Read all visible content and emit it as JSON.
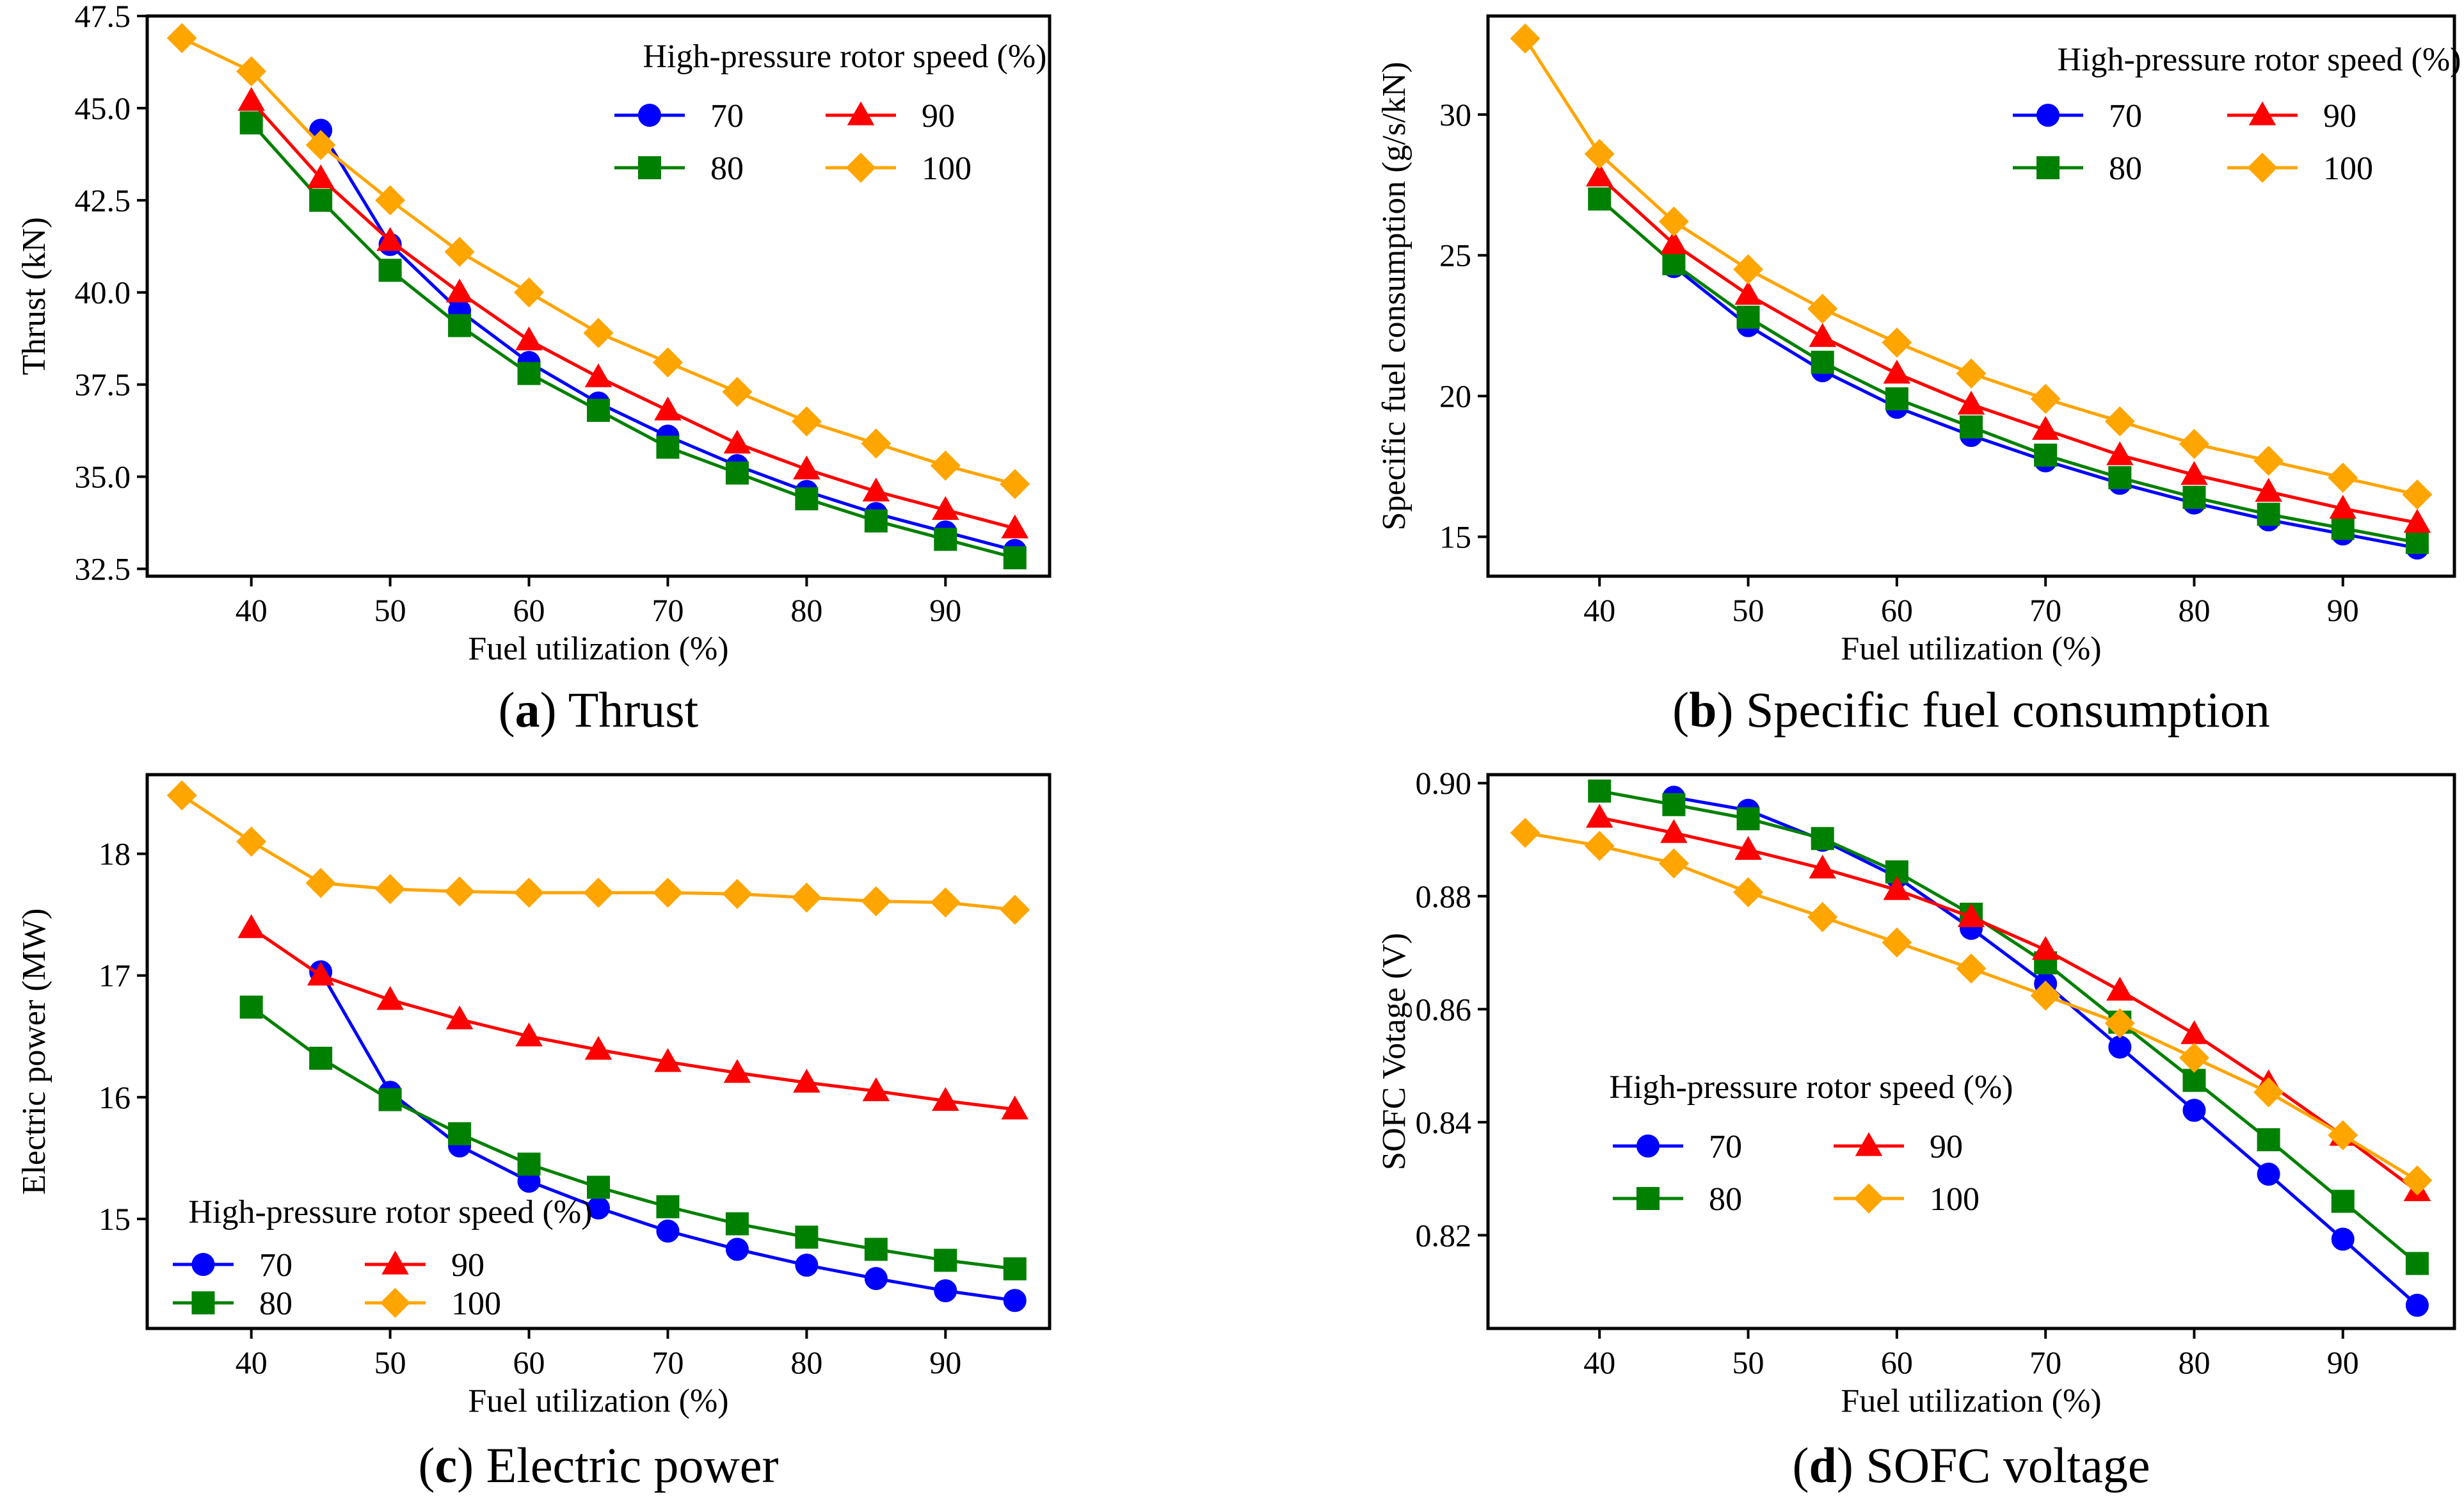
{
  "legend_title": "High-pressure rotor speed (%)",
  "series_colors": {
    "70": "#0000ff",
    "80": "#008000",
    "90": "#ff0000",
    "100": "#ffa500"
  },
  "series_markers": {
    "70": "circle",
    "80": "square",
    "90": "triangle",
    "100": "diamond"
  },
  "chart_data": [
    {
      "id": "a",
      "type": "line",
      "caption_letter": "a",
      "caption_text": "Thrust",
      "xlabel": "Fuel utilization (%)",
      "ylabel": "Thrust (kN)",
      "xlim": [
        32.5,
        97.5
      ],
      "ylim": [
        32.3,
        47.5
      ],
      "xticks": [
        40,
        50,
        60,
        70,
        80,
        90
      ],
      "xtick_labels": [
        "40",
        "50",
        "60",
        "70",
        "80",
        "90"
      ],
      "yticks": [
        32.5,
        35.0,
        37.5,
        40.0,
        42.5,
        45.0,
        47.5
      ],
      "ytick_labels": [
        "32.5",
        "35.0",
        "37.5",
        "40.0",
        "42.5",
        "45.0",
        "47.5"
      ],
      "legend_position": "top-right",
      "series": [
        {
          "name": "70",
          "x": [
            45,
            50,
            55,
            60,
            65,
            70,
            75,
            80,
            85,
            90,
            95
          ],
          "values": [
            44.4,
            41.3,
            39.5,
            38.1,
            37.0,
            36.1,
            35.3,
            34.6,
            34.0,
            33.5,
            33.0
          ]
        },
        {
          "name": "80",
          "x": [
            40,
            45,
            50,
            55,
            60,
            65,
            70,
            75,
            80,
            85,
            90,
            95
          ],
          "values": [
            44.6,
            42.5,
            40.6,
            39.1,
            37.8,
            36.8,
            35.8,
            35.1,
            34.4,
            33.8,
            33.3,
            32.8
          ]
        },
        {
          "name": "90",
          "x": [
            40,
            45,
            50,
            55,
            60,
            65,
            70,
            75,
            80,
            85,
            90,
            95
          ],
          "values": [
            45.2,
            43.1,
            41.4,
            40.0,
            38.7,
            37.7,
            36.8,
            35.9,
            35.2,
            34.6,
            34.1,
            33.6
          ]
        },
        {
          "name": "100",
          "x": [
            35,
            40,
            45,
            50,
            55,
            60,
            65,
            70,
            75,
            80,
            85,
            90,
            95
          ],
          "values": [
            46.9,
            46.0,
            44.0,
            42.5,
            41.1,
            40.0,
            38.9,
            38.1,
            37.3,
            36.5,
            35.9,
            35.3,
            34.8
          ]
        }
      ]
    },
    {
      "id": "b",
      "type": "line",
      "caption_letter": "b",
      "caption_text": "Specific fuel consumption",
      "xlabel": "Fuel utilization (%)",
      "ylabel": "Specific fuel consumption (g/s/kN)",
      "xlim": [
        32.5,
        97.5
      ],
      "ylim": [
        13.6,
        33.5
      ],
      "xticks": [
        40,
        50,
        60,
        70,
        80,
        90
      ],
      "xtick_labels": [
        "40",
        "50",
        "60",
        "70",
        "80",
        "90"
      ],
      "yticks": [
        15,
        20,
        25,
        30
      ],
      "ytick_labels": [
        "15",
        "20",
        "25",
        "30"
      ],
      "legend_position": "top-right",
      "series": [
        {
          "name": "70",
          "x": [
            45,
            50,
            55,
            60,
            65,
            70,
            75,
            80,
            85,
            90,
            95
          ],
          "values": [
            24.6,
            22.5,
            20.9,
            19.6,
            18.6,
            17.7,
            16.9,
            16.2,
            15.6,
            15.1,
            14.6
          ]
        },
        {
          "name": "80",
          "x": [
            40,
            45,
            50,
            55,
            60,
            65,
            70,
            75,
            80,
            85,
            90,
            95
          ],
          "values": [
            27.0,
            24.7,
            22.8,
            21.2,
            19.9,
            18.9,
            17.9,
            17.1,
            16.4,
            15.8,
            15.3,
            14.8
          ]
        },
        {
          "name": "90",
          "x": [
            40,
            45,
            50,
            55,
            60,
            65,
            70,
            75,
            80,
            85,
            90,
            95
          ],
          "values": [
            27.8,
            25.4,
            23.6,
            22.1,
            20.8,
            19.7,
            18.8,
            17.9,
            17.2,
            16.6,
            16.0,
            15.5
          ]
        },
        {
          "name": "100",
          "x": [
            35,
            40,
            45,
            50,
            55,
            60,
            65,
            70,
            75,
            80,
            85,
            90,
            95
          ],
          "values": [
            32.7,
            28.6,
            26.2,
            24.5,
            23.1,
            21.9,
            20.8,
            19.9,
            19.1,
            18.3,
            17.7,
            17.1,
            16.5
          ]
        }
      ]
    },
    {
      "id": "c",
      "type": "line",
      "caption_letter": "c",
      "caption_text": "Electric power",
      "xlabel": "Fuel utilization (%)",
      "ylabel": "Electric power (MW)",
      "xlim": [
        32.5,
        97.5
      ],
      "ylim": [
        14.1,
        18.65
      ],
      "xticks": [
        40,
        50,
        60,
        70,
        80,
        90
      ],
      "xtick_labels": [
        "40",
        "50",
        "60",
        "70",
        "80",
        "90"
      ],
      "yticks": [
        15,
        16,
        17,
        18
      ],
      "ytick_labels": [
        "15",
        "16",
        "17",
        "18"
      ],
      "legend_position": "bottom-left",
      "series": [
        {
          "name": "70",
          "x": [
            45,
            50,
            55,
            60,
            65,
            70,
            75,
            80,
            85,
            90,
            95
          ],
          "values": [
            17.03,
            16.04,
            15.6,
            15.31,
            15.09,
            14.9,
            14.75,
            14.62,
            14.51,
            14.41,
            14.33
          ]
        },
        {
          "name": "80",
          "x": [
            40,
            45,
            50,
            55,
            60,
            65,
            70,
            75,
            80,
            85,
            90,
            95
          ],
          "values": [
            16.74,
            16.32,
            15.98,
            15.7,
            15.45,
            15.26,
            15.1,
            14.96,
            14.85,
            14.75,
            14.66,
            14.59
          ]
        },
        {
          "name": "90",
          "x": [
            40,
            45,
            50,
            55,
            60,
            65,
            70,
            75,
            80,
            85,
            90,
            95
          ],
          "values": [
            17.39,
            17.0,
            16.8,
            16.64,
            16.5,
            16.39,
            16.29,
            16.2,
            16.12,
            16.05,
            15.97,
            15.9
          ]
        },
        {
          "name": "100",
          "x": [
            35,
            40,
            45,
            50,
            55,
            60,
            65,
            70,
            75,
            80,
            85,
            90,
            95
          ],
          "values": [
            18.48,
            18.1,
            17.76,
            17.71,
            17.69,
            17.68,
            17.68,
            17.68,
            17.67,
            17.64,
            17.61,
            17.6,
            17.54
          ]
        }
      ]
    },
    {
      "id": "d",
      "type": "line",
      "caption_letter": "d",
      "caption_text": "SOFC voltage",
      "xlabel": "Fuel utilization (%)",
      "ylabel": "SOFC Votage (V)",
      "xlim": [
        32.5,
        97.5
      ],
      "ylim": [
        0.8035,
        0.9015
      ],
      "xticks": [
        40,
        50,
        60,
        70,
        80,
        90
      ],
      "xtick_labels": [
        "40",
        "50",
        "60",
        "70",
        "80",
        "90"
      ],
      "yticks": [
        0.82,
        0.84,
        0.86,
        0.88,
        0.9
      ],
      "ytick_labels": [
        "0.82",
        "0.84",
        "0.86",
        "0.88",
        "0.90"
      ],
      "legend_position": "lower-left",
      "series": [
        {
          "name": "70",
          "x": [
            45,
            50,
            55,
            60,
            65,
            70,
            75,
            80,
            85,
            90,
            95
          ],
          "values": [
            0.8975,
            0.8952,
            0.8899,
            0.8834,
            0.8743,
            0.8645,
            0.8533,
            0.8421,
            0.8308,
            0.8193,
            0.8076
          ]
        },
        {
          "name": "80",
          "x": [
            40,
            45,
            50,
            55,
            60,
            65,
            70,
            75,
            80,
            85,
            90,
            95
          ],
          "values": [
            0.8986,
            0.8962,
            0.8937,
            0.8902,
            0.8843,
            0.8768,
            0.8682,
            0.8577,
            0.8474,
            0.8369,
            0.826,
            0.815
          ]
        },
        {
          "name": "90",
          "x": [
            40,
            45,
            50,
            55,
            60,
            65,
            70,
            75,
            80,
            85,
            90,
            95
          ],
          "values": [
            0.8939,
            0.8912,
            0.8882,
            0.8849,
            0.8811,
            0.8763,
            0.8705,
            0.8633,
            0.8556,
            0.8469,
            0.8376,
            0.8278
          ]
        },
        {
          "name": "100",
          "x": [
            35,
            40,
            45,
            50,
            55,
            60,
            65,
            70,
            75,
            80,
            85,
            90,
            95
          ],
          "values": [
            0.8912,
            0.8889,
            0.8858,
            0.8807,
            0.8763,
            0.8718,
            0.8672,
            0.8624,
            0.8575,
            0.8514,
            0.8453,
            0.8377,
            0.8297
          ]
        }
      ]
    }
  ]
}
